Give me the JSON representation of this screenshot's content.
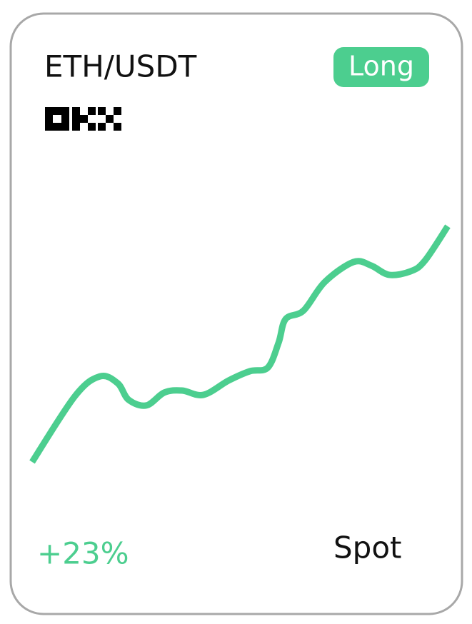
{
  "card": {
    "pair": "ETH/USDT",
    "badge": "Long",
    "change": "+23%",
    "market": "Spot"
  },
  "chart_data": {
    "type": "line",
    "color": "#4cce8f",
    "x": [
      0,
      10.3,
      16.3,
      20.6,
      23.2,
      27.5,
      31.8,
      36.1,
      41.2,
      47.3,
      52.4,
      56.7,
      59.3,
      61.0,
      65.3,
      70.4,
      77.3,
      81.6,
      85.9,
      91.1,
      94.5,
      100
    ],
    "values": [
      3.6,
      29.2,
      36.9,
      34.2,
      27.8,
      25.6,
      30.6,
      31.4,
      29.7,
      35.3,
      38.9,
      40.3,
      50,
      59.2,
      62.5,
      73.6,
      81.4,
      80,
      76.4,
      77.8,
      81.9,
      95.3
    ],
    "xlim": [
      0,
      100
    ],
    "ylim": [
      0,
      100
    ]
  }
}
